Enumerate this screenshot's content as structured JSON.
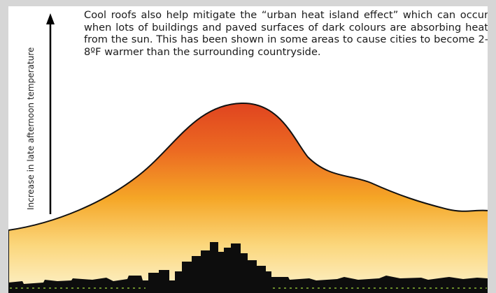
{
  "axis_label": "Increase in late afternoon temperature",
  "paragraph": "Cool roofs also help mitigate the “urban heat island effect” which can occur when lots of buildings and paved surfaces of dark colours are absorbing heat from the sun. This has been shown in some areas to cause cities to become 2-8ºF warmer than the surrounding countryside."
}
